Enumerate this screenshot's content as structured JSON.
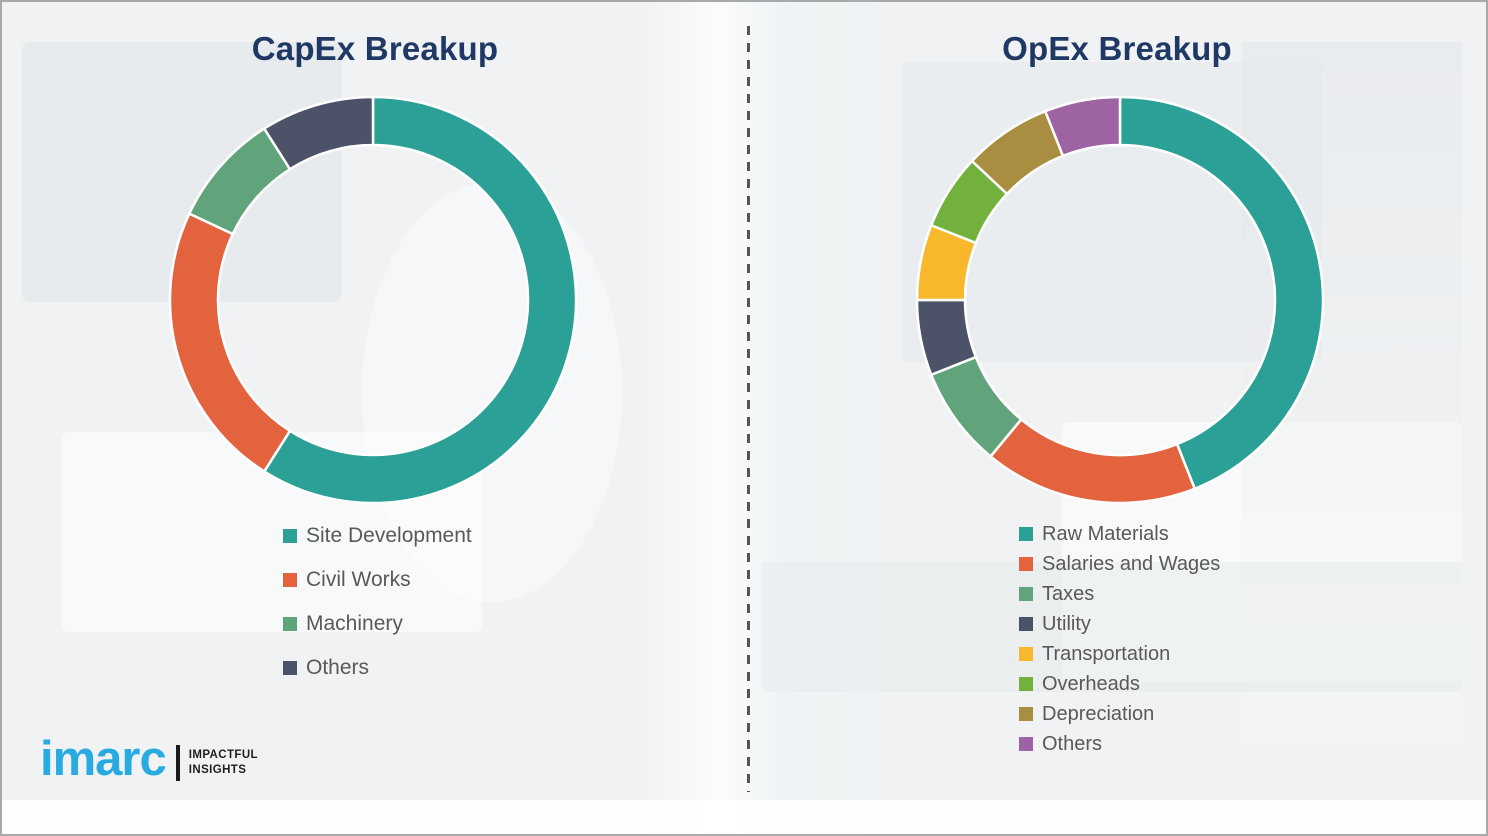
{
  "chart_data": [
    {
      "type": "donut",
      "title": "CapEx Breakup",
      "categories": [
        "Site Development",
        "Civil Works",
        "Machinery",
        "Others"
      ],
      "values": [
        59,
        23,
        9,
        9
      ],
      "values_are_estimates_percent": true,
      "colors": [
        "#2AA096",
        "#E3633E",
        "#61A47C",
        "#4C5268"
      ],
      "start_angle_deg_from_top": 0,
      "direction": "clockwise",
      "donut_hole_ratio": 0.765,
      "legend_position": "below-left",
      "data_labels_shown": false
    },
    {
      "type": "donut",
      "title": "OpEx Breakup",
      "categories": [
        "Raw Materials",
        "Salaries and Wages",
        "Taxes",
        "Utility",
        "Transportation",
        "Overheads",
        "Depreciation",
        "Others"
      ],
      "values": [
        44,
        17,
        8,
        6,
        6,
        6,
        7,
        6
      ],
      "values_are_estimates_percent": true,
      "colors": [
        "#2AA096",
        "#E3633E",
        "#61A47C",
        "#4C5268",
        "#F7B92B",
        "#72B13D",
        "#A98D40",
        "#9D63A3"
      ],
      "start_angle_deg_from_top": 0,
      "direction": "clockwise",
      "donut_hole_ratio": 0.765,
      "legend_position": "below-left",
      "data_labels_shown": false
    }
  ],
  "styles": {
    "title_color": "#1F3864",
    "legend_text_color": "#595959",
    "segment_gap_color": "#FFFFFF",
    "divider_color": "#555555",
    "frame_color": "#A9A9A9"
  },
  "logo": {
    "brand": "imarc",
    "tagline": [
      "IMPACTFUL",
      "INSIGHTS"
    ],
    "brand_color": "#29ABE2"
  }
}
